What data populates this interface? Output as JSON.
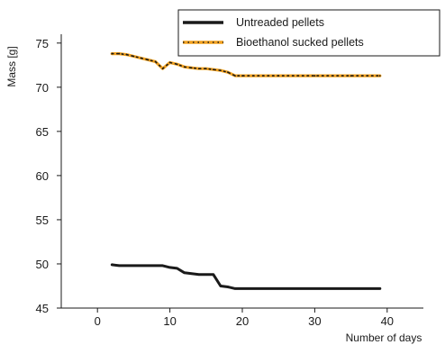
{
  "chart_data": {
    "type": "line",
    "xlabel": "Number of days",
    "ylabel": "Mass [g]",
    "xlim": [
      -5,
      45
    ],
    "ylim": [
      45,
      76
    ],
    "xticks": [
      0,
      10,
      20,
      30,
      40
    ],
    "yticks": [
      45,
      50,
      55,
      60,
      65,
      70,
      75
    ],
    "grid": false,
    "legend_position": "top-right",
    "series": [
      {
        "name": "Untreaded pellets",
        "color": "#1a1a1a",
        "x": [
          2,
          3,
          4,
          5,
          6,
          7,
          8,
          9,
          10,
          11,
          12,
          13,
          14,
          15,
          16,
          17,
          18,
          19,
          20,
          25,
          30,
          35,
          39
        ],
        "y": [
          49.9,
          49.8,
          49.8,
          49.8,
          49.8,
          49.8,
          49.8,
          49.8,
          49.6,
          49.5,
          49.0,
          48.9,
          48.8,
          48.8,
          48.8,
          47.5,
          47.4,
          47.2,
          47.2,
          47.2,
          47.2,
          47.2,
          47.2
        ]
      },
      {
        "name": "Bioethanol sucked pellets",
        "color": "#f2a11e",
        "x": [
          2,
          3,
          4,
          5,
          6,
          7,
          8,
          9,
          10,
          11,
          12,
          13,
          14,
          15,
          16,
          17,
          18,
          19,
          20,
          25,
          30,
          35,
          39
        ],
        "y": [
          73.8,
          73.8,
          73.7,
          73.5,
          73.3,
          73.1,
          72.9,
          72.1,
          72.8,
          72.6,
          72.3,
          72.2,
          72.1,
          72.1,
          72.0,
          71.9,
          71.7,
          71.3,
          71.3,
          71.3,
          71.3,
          71.3,
          71.3
        ]
      }
    ]
  }
}
